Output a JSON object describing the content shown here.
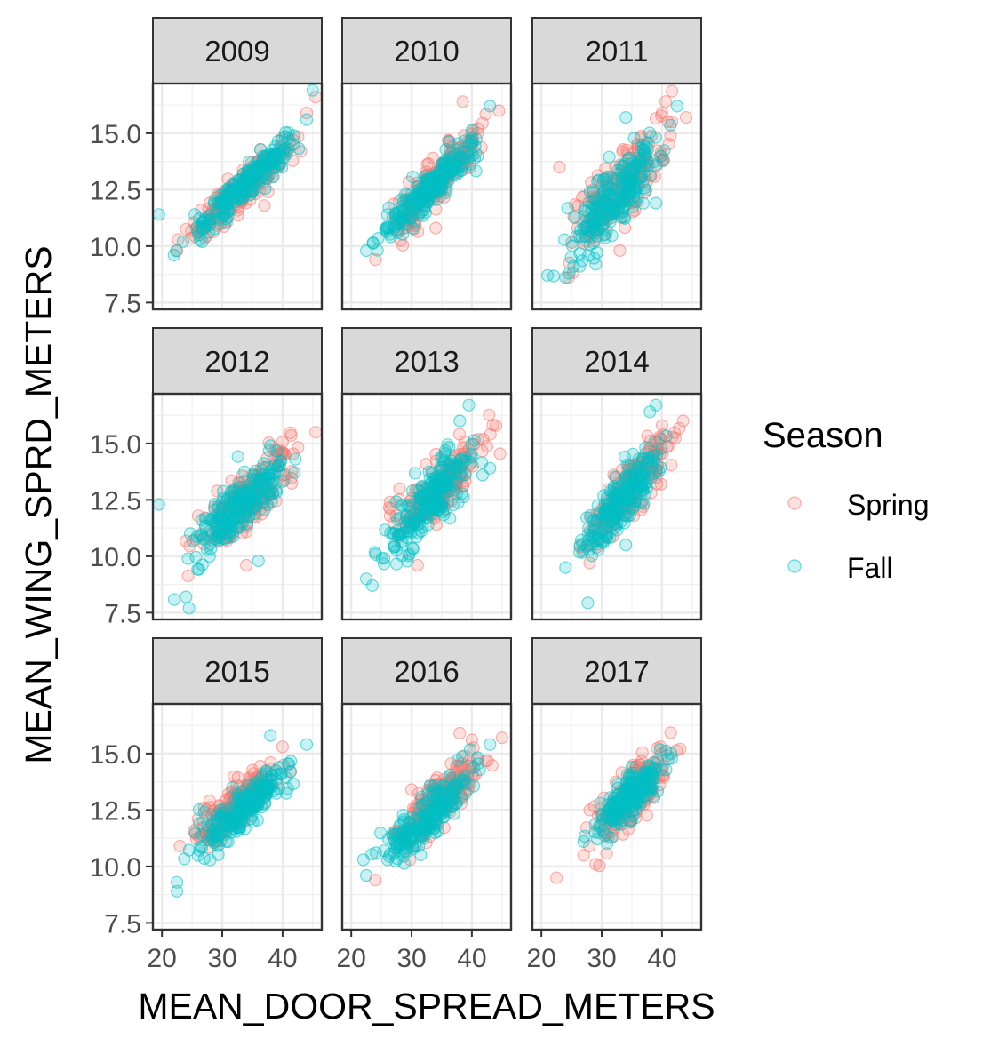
{
  "chart_data": {
    "type": "scatter",
    "facet_titles": [
      "2009",
      "2010",
      "2011",
      "2012",
      "2013",
      "2014",
      "2015",
      "2016",
      "2017"
    ],
    "xlabel": "MEAN_DOOR_SPREAD_METERS",
    "ylabel": "MEAN_WING_SPRD_METERS",
    "xlim": [
      18.5,
      46.5
    ],
    "ylim": [
      7.2,
      17.2
    ],
    "x_ticks": [
      20,
      30,
      40
    ],
    "x_tick_labels": [
      "20",
      "30",
      "40"
    ],
    "y_ticks": [
      7.5,
      10.0,
      12.5,
      15.0
    ],
    "y_tick_labels": [
      "7.5",
      "10.0",
      "12.5",
      "15.0"
    ],
    "grid": true,
    "legend": {
      "title": "Season",
      "position": "right",
      "entries": [
        {
          "name": "Spring",
          "color": "#F8766D"
        },
        {
          "name": "Fall",
          "color": "#00BFC4"
        }
      ]
    },
    "facets": [
      {
        "title": "2009",
        "spring": {
          "x_range": [
            22,
            45
          ],
          "slope": 0.233,
          "intercept": 4.8,
          "spread": 0.45,
          "highlights": [
            [
              22.5,
              9.8
            ],
            [
              37,
              11.8
            ],
            [
              43,
              14.2
            ],
            [
              45.5,
              16.6
            ],
            [
              44,
              15.9
            ]
          ]
        },
        "fall": {
          "x_range": [
            21,
            45
          ],
          "slope": 0.245,
          "intercept": 4.45,
          "spread": 0.35,
          "highlights": [
            [
              19.5,
              11.4
            ],
            [
              22,
              9.6
            ],
            [
              23.5,
              10.2
            ],
            [
              45,
              16.9
            ],
            [
              44,
              15.6
            ]
          ]
        }
      },
      {
        "title": "2010",
        "spring": {
          "x_range": [
            23,
            45
          ],
          "slope": 0.26,
          "intercept": 4.0,
          "spread": 0.55,
          "highlights": [
            [
              24,
              9.4
            ],
            [
              34,
              10.8
            ],
            [
              38.5,
              16.4
            ],
            [
              44.5,
              16.0
            ],
            [
              30,
              11.5
            ]
          ]
        },
        "fall": {
          "x_range": [
            22,
            44
          ],
          "slope": 0.265,
          "intercept": 3.8,
          "spread": 0.38,
          "highlights": [
            [
              22.5,
              9.8
            ],
            [
              43,
              16.2
            ],
            [
              41,
              14.0
            ]
          ]
        }
      },
      {
        "title": "2011",
        "spring": {
          "x_range": [
            22,
            44
          ],
          "slope": 0.27,
          "intercept": 3.6,
          "spread": 0.8,
          "highlights": [
            [
              23,
              13.5
            ],
            [
              26,
              10.8
            ],
            [
              40,
              15.9
            ],
            [
              44,
              15.7
            ],
            [
              33,
              9.8
            ]
          ]
        },
        "fall": {
          "x_range": [
            21,
            43
          ],
          "slope": 0.28,
          "intercept": 3.2,
          "spread": 0.7,
          "highlights": [
            [
              21,
              8.7
            ],
            [
              24,
              8.6
            ],
            [
              29,
              9.2
            ],
            [
              39,
              11.9
            ],
            [
              42.5,
              16.2
            ],
            [
              34,
              15.7
            ]
          ]
        }
      },
      {
        "title": "2012",
        "spring": {
          "x_range": [
            23,
            45
          ],
          "slope": 0.24,
          "intercept": 4.4,
          "spread": 0.6,
          "highlights": [
            [
              26,
              11.8
            ],
            [
              45.5,
              15.5
            ],
            [
              34,
              9.6
            ]
          ]
        },
        "fall": {
          "x_range": [
            22,
            44
          ],
          "slope": 0.25,
          "intercept": 4.0,
          "spread": 0.6,
          "highlights": [
            [
              19.5,
              12.3
            ],
            [
              24,
              8.2
            ],
            [
              24.5,
              7.7
            ],
            [
              36,
              9.8
            ],
            [
              38,
              14.9
            ]
          ]
        }
      },
      {
        "title": "2013",
        "spring": {
          "x_range": [
            24,
            45
          ],
          "slope": 0.27,
          "intercept": 3.7,
          "spread": 0.6,
          "highlights": [
            [
              26.5,
              12.1
            ],
            [
              31,
              9.6
            ],
            [
              44,
              15.8
            ],
            [
              28,
              13.0
            ]
          ]
        },
        "fall": {
          "x_range": [
            23,
            43
          ],
          "slope": 0.28,
          "intercept": 3.2,
          "spread": 0.6,
          "highlights": [
            [
              22.5,
              9.0
            ],
            [
              23.5,
              8.7
            ],
            [
              43,
              13.9
            ],
            [
              39.5,
              16.7
            ],
            [
              38,
              16.0
            ]
          ]
        }
      },
      {
        "title": "2014",
        "spring": {
          "x_range": [
            25,
            44
          ],
          "slope": 0.29,
          "intercept": 3.0,
          "spread": 0.6,
          "highlights": [
            [
              28,
              9.7
            ],
            [
              43.5,
              16.0
            ],
            [
              40,
              15.8
            ]
          ]
        },
        "fall": {
          "x_range": [
            24,
            43
          ],
          "slope": 0.3,
          "intercept": 2.5,
          "spread": 0.6,
          "highlights": [
            [
              24,
              9.5
            ],
            [
              39,
              16.7
            ],
            [
              38,
              16.4
            ],
            [
              34,
              10.5
            ]
          ]
        }
      },
      {
        "title": "2015",
        "spring": {
          "x_range": [
            23,
            42
          ],
          "slope": 0.2,
          "intercept": 6.2,
          "spread": 0.5,
          "highlights": [
            [
              23,
              10.9
            ],
            [
              26,
              12.1
            ],
            [
              27,
              12.6
            ],
            [
              40,
              15.3
            ],
            [
              38,
              14.6
            ]
          ]
        },
        "fall": {
          "x_range": [
            23,
            44
          ],
          "slope": 0.23,
          "intercept": 4.9,
          "spread": 0.45,
          "highlights": [
            [
              22.5,
              9.3
            ],
            [
              22.5,
              8.9
            ],
            [
              38,
              15.8
            ],
            [
              44,
              15.4
            ]
          ]
        }
      },
      {
        "title": "2016",
        "spring": {
          "x_range": [
            24,
            45
          ],
          "slope": 0.24,
          "intercept": 4.6,
          "spread": 0.6,
          "highlights": [
            [
              24,
              9.4
            ],
            [
              38,
              15.9
            ],
            [
              40,
              15.6
            ],
            [
              45,
              15.7
            ],
            [
              30,
              13.4
            ]
          ]
        },
        "fall": {
          "x_range": [
            22,
            44
          ],
          "slope": 0.25,
          "intercept": 4.1,
          "spread": 0.5,
          "highlights": [
            [
              22,
              10.3
            ],
            [
              22.5,
              9.6
            ],
            [
              43,
              15.4
            ]
          ]
        }
      },
      {
        "title": "2017",
        "spring": {
          "x_range": [
            26,
            43
          ],
          "slope": 0.25,
          "intercept": 4.3,
          "spread": 0.6,
          "highlights": [
            [
              22.5,
              9.5
            ],
            [
              27,
              10.5
            ],
            [
              29,
              10.1
            ],
            [
              43,
              15.2
            ],
            [
              28,
              12.5
            ]
          ]
        },
        "fall": {
          "x_range": [
            27,
            42
          ],
          "slope": 0.25,
          "intercept": 4.4,
          "spread": 0.4,
          "highlights": [
            [
              27,
              11.1
            ],
            [
              41.5,
              15.0
            ],
            [
              35,
              14.4
            ]
          ]
        }
      }
    ]
  }
}
